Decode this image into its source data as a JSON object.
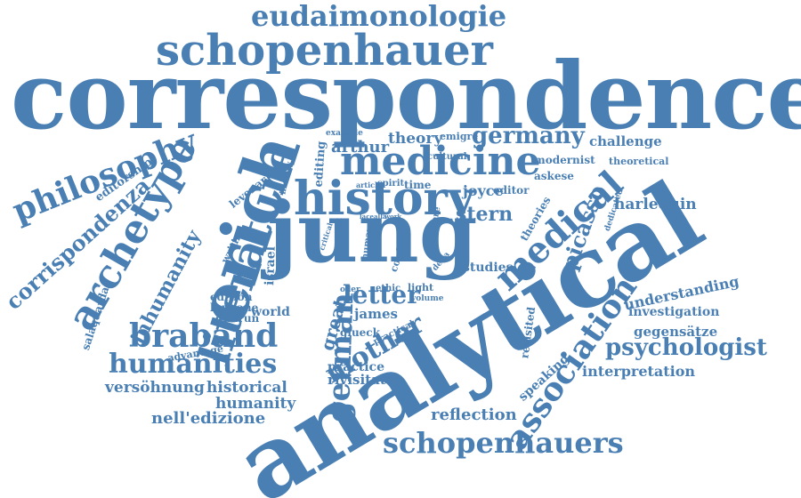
{
  "colors": {
    "text": "#4a7fb3",
    "background": "#ffffff"
  },
  "words": [
    "correspondence",
    "analytical",
    "jung",
    "erich",
    "history",
    "medicine",
    "schopenhauer",
    "eudaimonologie",
    "literature",
    "archetype",
    "philosophy",
    "corrispondenza",
    "medical",
    "association",
    "germany",
    "braband",
    "humanities",
    "schopenhauers",
    "german",
    "mother",
    "letter",
    "psychologist",
    "picasso",
    "stern",
    "joyce",
    "great",
    "inhumanity",
    "understanding",
    "harlequin",
    "challenge",
    "arthur",
    "theory",
    "versöhnung",
    "historical",
    "humanity",
    "nell'edizione",
    "reflection",
    "interpretation",
    "gegensätze",
    "investigation",
    "rivisitata",
    "practice",
    "james",
    "glueck",
    "world",
    "gudrun",
    "humane",
    "edition",
    "israel",
    "editorship",
    "levenar",
    "writing",
    "salaquarda",
    "advantage",
    "studies",
    "theories",
    "editor",
    "askese",
    "modernist",
    "theoretical",
    "emigré",
    "cultural",
    "time",
    "spirit",
    "article",
    "example",
    "editing",
    "literary",
    "lettere",
    "conflict",
    "human",
    "ethic",
    "light",
    "oder",
    "volume",
    "della",
    "practical",
    "speaking",
    "revisited",
    "dedicated",
    "critical",
    "freud",
    "lace",
    "alla",
    "work"
  ]
}
